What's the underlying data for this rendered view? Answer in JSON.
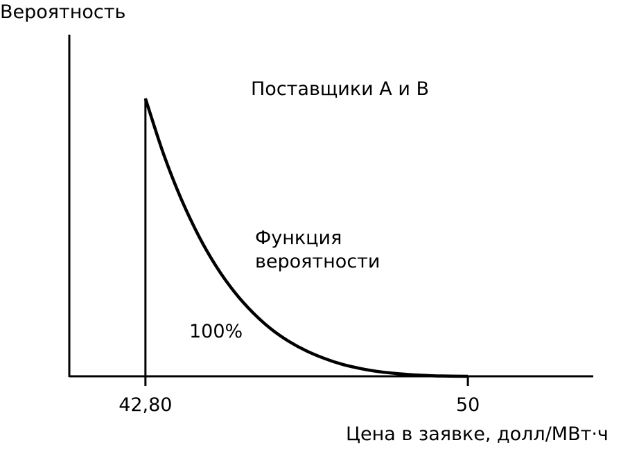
{
  "chart_data": {
    "type": "line",
    "title": "Поставщики А и В",
    "ylabel": "Вероятность",
    "xlabel": "Цена в заявке, долл/МВт·ч",
    "x_ticks": [
      {
        "value": 42.8,
        "label": "42,80"
      },
      {
        "value": 50,
        "label": "50"
      }
    ],
    "xlim": [
      41.1,
      52.8
    ],
    "ylim": [
      0,
      1.23
    ],
    "grid": false,
    "series": [
      {
        "name": "Функция вероятности",
        "x": [
          42.8,
          43.2,
          43.6,
          44.0,
          44.4,
          44.8,
          45.2,
          45.6,
          46.0,
          46.4,
          46.8,
          47.2,
          47.6,
          48.0,
          48.4,
          48.8,
          49.2,
          49.6,
          50.0
        ],
        "y": [
          1.0,
          0.802,
          0.638,
          0.502,
          0.391,
          0.301,
          0.229,
          0.171,
          0.126,
          0.091,
          0.064,
          0.043,
          0.028,
          0.017,
          0.01,
          0.005,
          0.002,
          0.0005,
          0.0
        ]
      }
    ],
    "annotations": [
      {
        "id": "curve-label",
        "lines": [
          "Функция",
          "вероятности"
        ]
      },
      {
        "id": "area-label",
        "text": "100%"
      }
    ]
  }
}
